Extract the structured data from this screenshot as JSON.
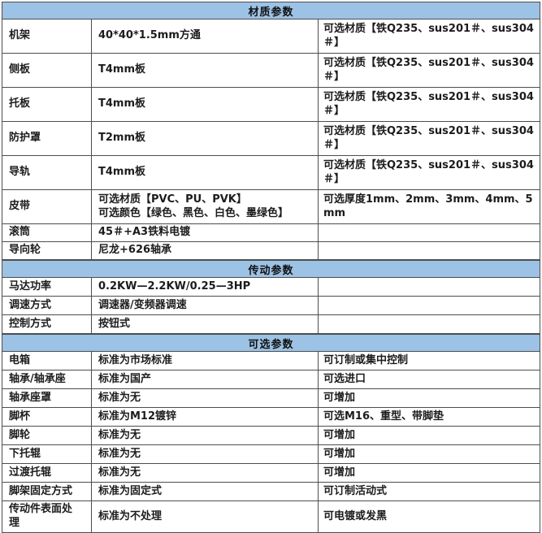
{
  "table": {
    "accent_color": "#9cc2e5",
    "border_color": "#4d4d4d",
    "sections": [
      {
        "header": "材质参数",
        "rows": [
          {
            "label": "机架",
            "spec": "40*40*1.5mm方通",
            "options": "可选材质【铁Q235、sus201＃、sus304＃】"
          },
          {
            "label": "侧板",
            "spec": "T4mm板",
            "options": "可选材质【铁Q235、sus201＃、sus304＃】"
          },
          {
            "label": "托板",
            "spec": "T4mm板",
            "options": "可选材质【铁Q235、sus201＃、sus304＃】"
          },
          {
            "label": "防护罩",
            "spec": "T2mm板",
            "options": "可选材质【铁Q235、sus201＃、sus304＃】"
          },
          {
            "label": "导轨",
            "spec": "T4mm板",
            "options": "可选材质【铁Q235、sus201＃、sus304＃】"
          },
          {
            "label": "皮带",
            "spec": "可选材质【PVC、PU、PVK】\n可选颜色【绿色、黑色、白色、墨绿色】",
            "options": "可选厚度1mm、2mm、3mm、4mm、5mm"
          },
          {
            "label": "滚筒",
            "spec": "45＃+A3铁料电镀",
            "options": ""
          },
          {
            "label": "导向轮",
            "spec": "尼龙+626轴承",
            "options": ""
          }
        ]
      },
      {
        "header": "传动参数",
        "rows": [
          {
            "label": "马达功率",
            "spec": "0.2KW—2.2KW/0.25—3HP",
            "options": ""
          },
          {
            "label": "调速方式",
            "spec": "调速器/变频器调速",
            "options": ""
          },
          {
            "label": "控制方式",
            "spec": "按钮式",
            "options": ""
          }
        ]
      },
      {
        "header": "可选参数",
        "rows": [
          {
            "label": "电箱",
            "spec": "标准为市场标准",
            "options": "可订制或集中控制"
          },
          {
            "label": "轴承/轴承座",
            "spec": "标准为国产",
            "options": "可选进口"
          },
          {
            "label": "轴承座罩",
            "spec": "标准为无",
            "options": "可增加"
          },
          {
            "label": "脚杯",
            "spec": "标准为M12镀锌",
            "options": "可选M16、重型、带脚垫"
          },
          {
            "label": "脚轮",
            "spec": "标准为无",
            "options": "可增加"
          },
          {
            "label": "下托辊",
            "spec": "标准为无",
            "options": "可增加"
          },
          {
            "label": "过渡托辊",
            "spec": "标准为无",
            "options": "可增加"
          },
          {
            "label": "脚架固定方式",
            "spec": "标准为固定式",
            "options": "可订制活动式"
          },
          {
            "label": "传动件表面处理",
            "spec": "标准为不处理",
            "options": "可电镀或发黑"
          }
        ]
      }
    ]
  }
}
